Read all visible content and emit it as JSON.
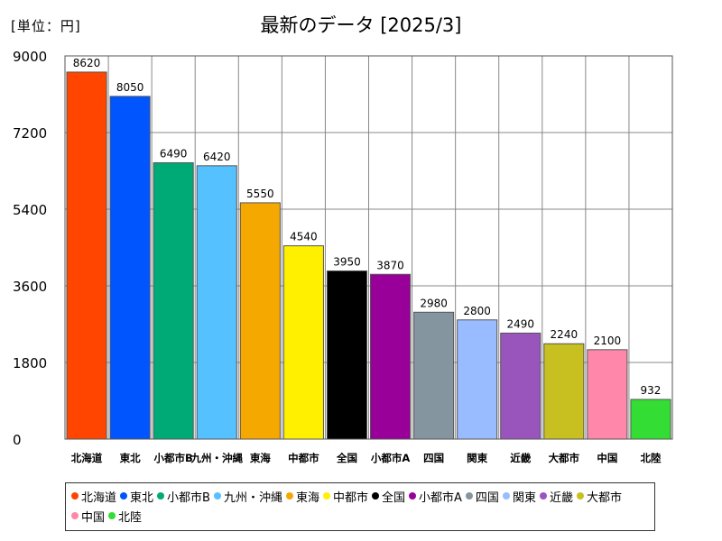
{
  "unit_label": "[単位：円]",
  "title": "最新のデータ [2025/3]",
  "chart_data": {
    "type": "bar",
    "categories": [
      "北海道",
      "東北",
      "小都市B",
      "九州・沖縄",
      "東海",
      "中都市",
      "全国",
      "小都市A",
      "四国",
      "関東",
      "近畿",
      "大都市",
      "中国",
      "北陸"
    ],
    "values": [
      8620,
      8050,
      6490,
      6420,
      5550,
      4540,
      3950,
      3870,
      2980,
      2800,
      2490,
      2240,
      2100,
      932
    ],
    "value_labels": [
      "8620",
      "8050",
      "6490",
      "6420",
      "5550",
      "4540",
      "3950",
      "3870",
      "2980",
      "2800",
      "2490",
      "2240",
      "2100",
      "932"
    ],
    "colors": [
      "#ff4500",
      "#0055ff",
      "#00aa77",
      "#55c1ff",
      "#f5a800",
      "#fff000",
      "#000000",
      "#990099",
      "#8595a0",
      "#99bbff",
      "#9955bb",
      "#c8c020",
      "#ff88aa",
      "#33dd33"
    ],
    "ylim": [
      0,
      9000
    ],
    "yticks": [
      "0",
      "1800",
      "3600",
      "5400",
      "7200",
      "9000"
    ],
    "ytick_values": [
      0,
      1800,
      3600,
      5400,
      7200,
      9000
    ],
    "grid": true,
    "legend_position": "bottom",
    "title": "最新のデータ [2025/3]",
    "xlabel": "",
    "ylabel": ""
  }
}
